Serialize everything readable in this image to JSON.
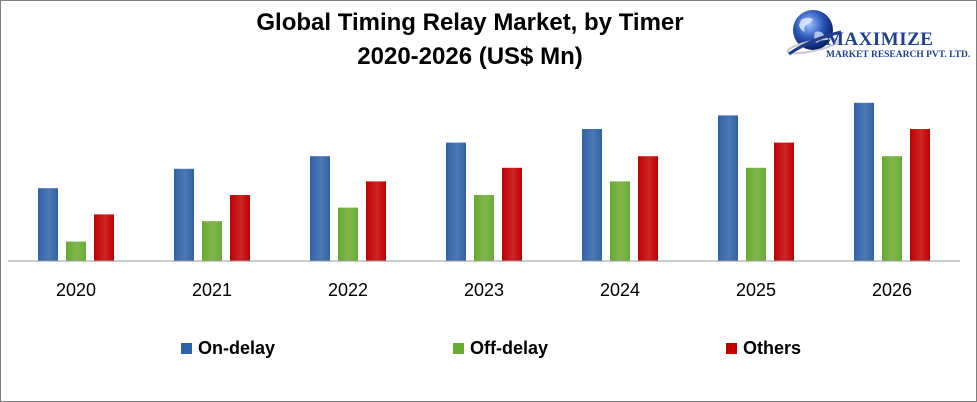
{
  "header": {
    "title_line1": "Global Timing Relay Market, by Timer",
    "title_line2": "2020-2026 (US$ Mn)"
  },
  "logo": {
    "name": "MAXIMIZE",
    "subtitle": "MARKET RESEARCH PVT. LTD.",
    "icon": "globe-icon"
  },
  "chart_data": {
    "type": "bar",
    "categories": [
      "2020",
      "2021",
      "2022",
      "2023",
      "2024",
      "2025",
      "2026"
    ],
    "series": [
      {
        "name": "On-delay",
        "color": "#2e62a8",
        "values": [
          75,
          95,
          108,
          122,
          136,
          150,
          163
        ]
      },
      {
        "name": "Off-delay",
        "color": "#6aaa30",
        "values": [
          20,
          41,
          55,
          68,
          82,
          96,
          108
        ]
      },
      {
        "name": "Others",
        "color": "#c00000",
        "values": [
          48,
          68,
          82,
          96,
          108,
          122,
          136
        ]
      }
    ],
    "ylim": [
      0,
      170
    ],
    "grid": false,
    "legend_position": "bottom",
    "xlabel": "",
    "ylabel": ""
  }
}
